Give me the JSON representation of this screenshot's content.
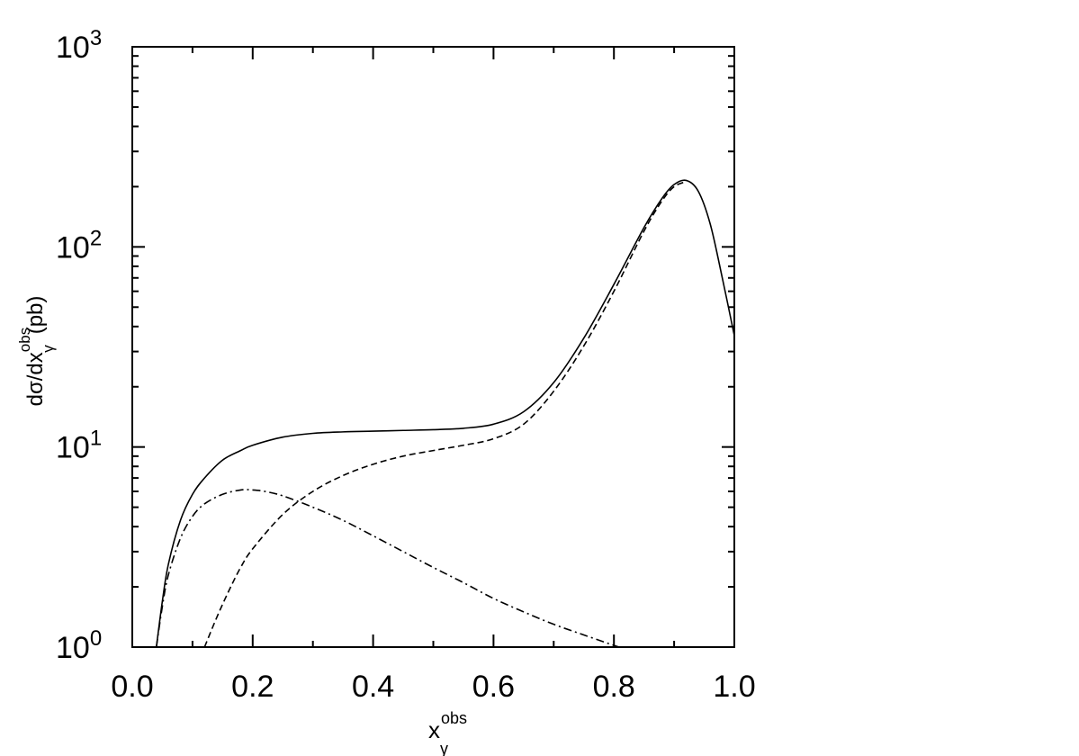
{
  "chart_data": {
    "type": "line",
    "xlabel": "x",
    "xlabel_sub": "γ",
    "xlabel_sup": "obs",
    "ylabel_main": "dσ/dx",
    "ylabel_sub": "γ",
    "ylabel_sup": "obs",
    "ylabel_unit": "(pb)",
    "xlim": [
      0.0,
      1.0
    ],
    "ylim": [
      1,
      1000
    ],
    "yscale": "log",
    "grid": false,
    "x_ticks": [
      "0.0",
      "0.2",
      "0.4",
      "0.6",
      "0.8",
      "1.0"
    ],
    "y_ticks": [
      {
        "base": "10",
        "exp": "0"
      },
      {
        "base": "10",
        "exp": "1"
      },
      {
        "base": "10",
        "exp": "2"
      },
      {
        "base": "10",
        "exp": "3"
      }
    ],
    "series": [
      {
        "style": "solid",
        "x": [
          0.04,
          0.05,
          0.06,
          0.08,
          0.1,
          0.12,
          0.15,
          0.18,
          0.2,
          0.25,
          0.3,
          0.35,
          0.4,
          0.45,
          0.5,
          0.55,
          0.6,
          0.65,
          0.7,
          0.75,
          0.8,
          0.85,
          0.88,
          0.9,
          0.92,
          0.94,
          0.96,
          0.98,
          1.0
        ],
        "y": [
          1.0,
          1.7,
          2.6,
          4.3,
          5.8,
          7.0,
          8.6,
          9.6,
          10.2,
          11.2,
          11.7,
          11.9,
          12.0,
          12.1,
          12.2,
          12.4,
          13.0,
          15.0,
          21.0,
          35.0,
          65.0,
          125.0,
          175.0,
          205.0,
          215.0,
          190.0,
          130.0,
          70.0,
          36.0
        ]
      },
      {
        "style": "dashed",
        "x": [
          0.12,
          0.14,
          0.16,
          0.18,
          0.2,
          0.25,
          0.3,
          0.35,
          0.4,
          0.45,
          0.5,
          0.55,
          0.6,
          0.65,
          0.7,
          0.75,
          0.8,
          0.85,
          0.88,
          0.9,
          0.92
        ],
        "y": [
          1.0,
          1.4,
          1.9,
          2.5,
          3.1,
          4.6,
          6.0,
          7.2,
          8.2,
          9.0,
          9.6,
          10.2,
          11.0,
          13.0,
          19.0,
          32.0,
          60.0,
          120.0,
          170.0,
          200.0,
          212.0
        ]
      },
      {
        "style": "dash-dot",
        "x": [
          0.04,
          0.05,
          0.06,
          0.08,
          0.1,
          0.12,
          0.15,
          0.18,
          0.2,
          0.22,
          0.25,
          0.3,
          0.35,
          0.4,
          0.45,
          0.5,
          0.55,
          0.6,
          0.65,
          0.7,
          0.75,
          0.8,
          0.81
        ],
        "y": [
          1.0,
          1.6,
          2.3,
          3.5,
          4.5,
          5.2,
          5.8,
          6.1,
          6.1,
          6.0,
          5.7,
          5.0,
          4.3,
          3.6,
          3.0,
          2.5,
          2.1,
          1.75,
          1.5,
          1.3,
          1.15,
          1.02,
          1.0
        ]
      }
    ]
  }
}
